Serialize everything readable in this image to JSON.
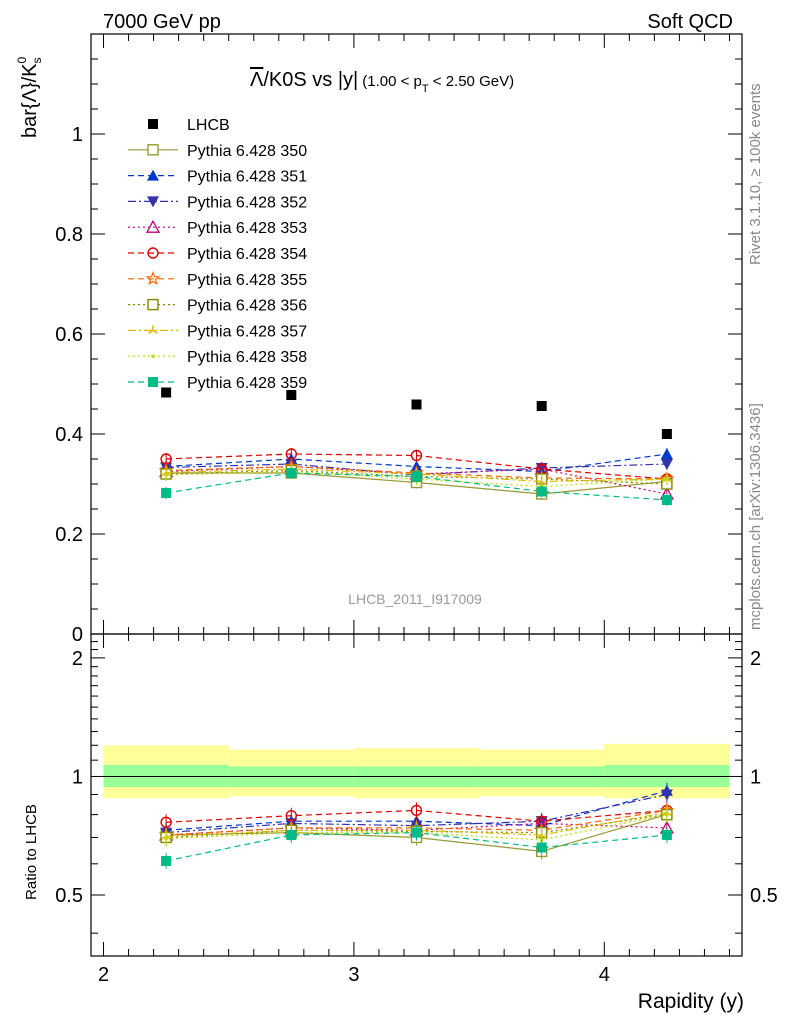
{
  "header": {
    "left": "7000 GeV pp",
    "right": "Soft QCD"
  },
  "side_labels": {
    "rivet": "Rivet 3.1.10, ≥ 100k events",
    "mcplots": "mcplots.cern.ch [arXiv:1306.3436]"
  },
  "watermark": "LHCB_2011_I917009",
  "colors": {
    "data": "#000000",
    "ratio_line": "#000000",
    "band_outer": "#ffff99",
    "band_inner": "#99ff99"
  },
  "chart_data": [
    {
      "id": "main",
      "type": "scatter",
      "title_main": "Λ/K0S vs |y|",
      "title_bar_symbol": "Λ",
      "title_rest": "/K0S vs |y|",
      "title_sub": "(1.00 < p",
      "title_sub_index": "T",
      "title_sub_end": " < 2.50 GeV)",
      "ylabel": "bar{Λ}/K",
      "ylabel_super": "0",
      "ylabel_sub": "s",
      "xlim": [
        1.95,
        4.55
      ],
      "ylim": [
        0,
        1.2
      ],
      "yticks": [
        0,
        0.2,
        0.4,
        0.6,
        0.8,
        1
      ],
      "ytick_labels": [
        "0",
        "0.2",
        "0.4",
        "0.6",
        "0.8",
        "1"
      ],
      "x": [
        2.25,
        2.75,
        3.25,
        3.75,
        4.25
      ],
      "data": {
        "name": "LHCB",
        "values": [
          0.483,
          0.478,
          0.459,
          0.456,
          0.4
        ]
      },
      "series": [
        {
          "name": "Pythia 6.428 350",
          "color": "#999933",
          "marker": "square-open",
          "dash": "solid",
          "values": [
            0.322,
            0.322,
            0.303,
            0.28,
            0.305
          ]
        },
        {
          "name": "Pythia 6.428 351",
          "color": "#0039cc",
          "marker": "triangle-up",
          "dash": "dashed",
          "values": [
            0.335,
            0.35,
            0.335,
            0.325,
            0.36
          ]
        },
        {
          "name": "Pythia 6.428 352",
          "color": "#3333aa",
          "marker": "triangle-down",
          "dash": "dashdot",
          "values": [
            0.333,
            0.34,
            0.318,
            0.332,
            0.34
          ]
        },
        {
          "name": "Pythia 6.428 353",
          "color": "#bb0077",
          "marker": "triangle-up-open",
          "dash": "dotted",
          "values": [
            0.325,
            0.335,
            0.32,
            0.33,
            0.28
          ]
        },
        {
          "name": "Pythia 6.428 354",
          "color": "#dd0000",
          "marker": "circle-open",
          "dash": "dashed",
          "values": [
            0.35,
            0.36,
            0.357,
            0.33,
            0.31
          ]
        },
        {
          "name": "Pythia 6.428 355",
          "color": "#ff6600",
          "marker": "star-open",
          "dash": "dashed",
          "values": [
            0.327,
            0.335,
            0.322,
            0.312,
            0.31
          ]
        },
        {
          "name": "Pythia 6.428 356",
          "color": "#888800",
          "marker": "square-open",
          "dash": "dotted",
          "values": [
            0.32,
            0.327,
            0.315,
            0.31,
            0.3
          ]
        },
        {
          "name": "Pythia 6.428 357",
          "color": "#ddbb00",
          "marker": "tri-star",
          "dash": "dashdot",
          "values": [
            0.323,
            0.33,
            0.32,
            0.305,
            0.31
          ]
        },
        {
          "name": "Pythia 6.428 358",
          "color": "#bbdd00",
          "marker": "dot",
          "dash": "dotted",
          "values": [
            0.318,
            0.325,
            0.31,
            0.295,
            0.31
          ]
        },
        {
          "name": "Pythia 6.428 359",
          "color": "#00bb88",
          "marker": "square",
          "dash": "dashed",
          "values": [
            0.282,
            0.322,
            0.315,
            0.285,
            0.268
          ]
        }
      ]
    },
    {
      "id": "ratio",
      "type": "scatter",
      "ylabel": "Ratio to LHCB",
      "xlabel": "Rapidity (y)",
      "xlim": [
        1.95,
        4.55
      ],
      "ylim": [
        0.35,
        2.3
      ],
      "xticks": [
        2,
        3,
        4
      ],
      "xtick_labels": [
        "2",
        "3",
        "4"
      ],
      "yticks": [
        0.5,
        1,
        2
      ],
      "ytick_labels": [
        "0.5",
        "1",
        "2"
      ],
      "x": [
        2.25,
        2.75,
        3.25,
        3.75,
        4.25
      ],
      "x_bins": [
        [
          2.0,
          2.5
        ],
        [
          2.5,
          3.0
        ],
        [
          3.0,
          3.5
        ],
        [
          3.5,
          4.0
        ],
        [
          4.0,
          4.5
        ]
      ],
      "band_outer": [
        [
          0.88,
          1.2
        ],
        [
          0.89,
          1.17
        ],
        [
          0.88,
          1.18
        ],
        [
          0.89,
          1.17
        ],
        [
          0.88,
          1.21
        ]
      ],
      "band_inner": [
        [
          0.94,
          1.07
        ],
        [
          0.94,
          1.06
        ],
        [
          0.94,
          1.06
        ],
        [
          0.94,
          1.06
        ],
        [
          0.94,
          1.07
        ]
      ],
      "series": [
        {
          "name": "Pythia 6.428 350",
          "values": [
            0.71,
            0.72,
            0.7,
            0.645,
            0.8
          ]
        },
        {
          "name": "Pythia 6.428 351",
          "values": [
            0.73,
            0.77,
            0.77,
            0.75,
            0.92
          ]
        },
        {
          "name": "Pythia 6.428 352",
          "values": [
            0.72,
            0.76,
            0.75,
            0.77,
            0.9
          ]
        },
        {
          "name": "Pythia 6.428 353",
          "values": [
            0.71,
            0.74,
            0.73,
            0.76,
            0.74
          ]
        },
        {
          "name": "Pythia 6.428 354",
          "values": [
            0.765,
            0.795,
            0.82,
            0.77,
            0.82
          ]
        },
        {
          "name": "Pythia 6.428 355",
          "values": [
            0.71,
            0.74,
            0.74,
            0.73,
            0.82
          ]
        },
        {
          "name": "Pythia 6.428 356",
          "values": [
            0.7,
            0.73,
            0.725,
            0.72,
            0.8
          ]
        },
        {
          "name": "Pythia 6.428 357",
          "values": [
            0.705,
            0.73,
            0.73,
            0.71,
            0.81
          ]
        },
        {
          "name": "Pythia 6.428 358",
          "values": [
            0.695,
            0.72,
            0.72,
            0.69,
            0.8
          ]
        },
        {
          "name": "Pythia 6.428 359",
          "values": [
            0.61,
            0.71,
            0.72,
            0.66,
            0.71
          ]
        }
      ]
    }
  ]
}
